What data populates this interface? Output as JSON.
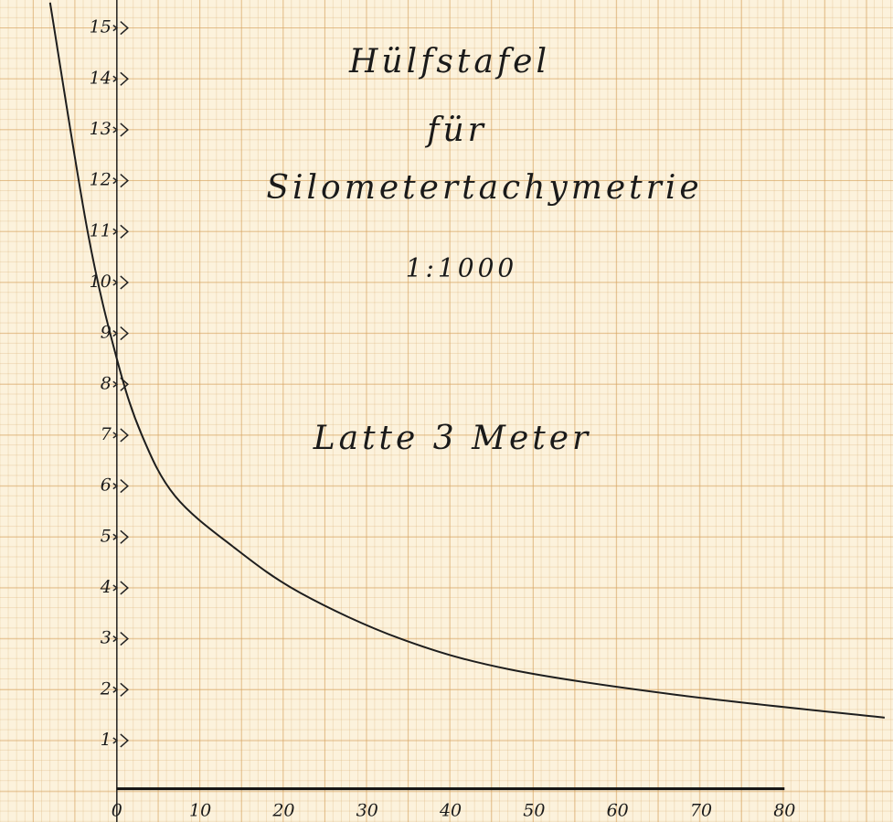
{
  "chart_data": {
    "type": "line",
    "title": "Hülfstafel",
    "annotations": [
      "für",
      "Silometertachymetrie",
      "1:1000",
      "Latte 3 Meter"
    ],
    "x": [
      -8,
      -3.5,
      0,
      3,
      7,
      14,
      22,
      34,
      47,
      67,
      92
    ],
    "values": [
      15.5,
      11,
      8.5,
      7,
      5.8,
      4.8,
      3.9,
      3,
      2.4,
      1.9,
      1.45
    ],
    "color": "#1e1e1e",
    "xlim": [
      -14,
      93
    ],
    "ylim": [
      -0.6,
      15.55
    ],
    "xticks": [
      0,
      10,
      20,
      30,
      40,
      50,
      60,
      70,
      80
    ],
    "yticks": [
      1,
      2,
      3,
      4,
      5,
      6,
      7,
      8,
      9,
      10,
      11,
      12,
      13,
      14,
      15
    ]
  }
}
